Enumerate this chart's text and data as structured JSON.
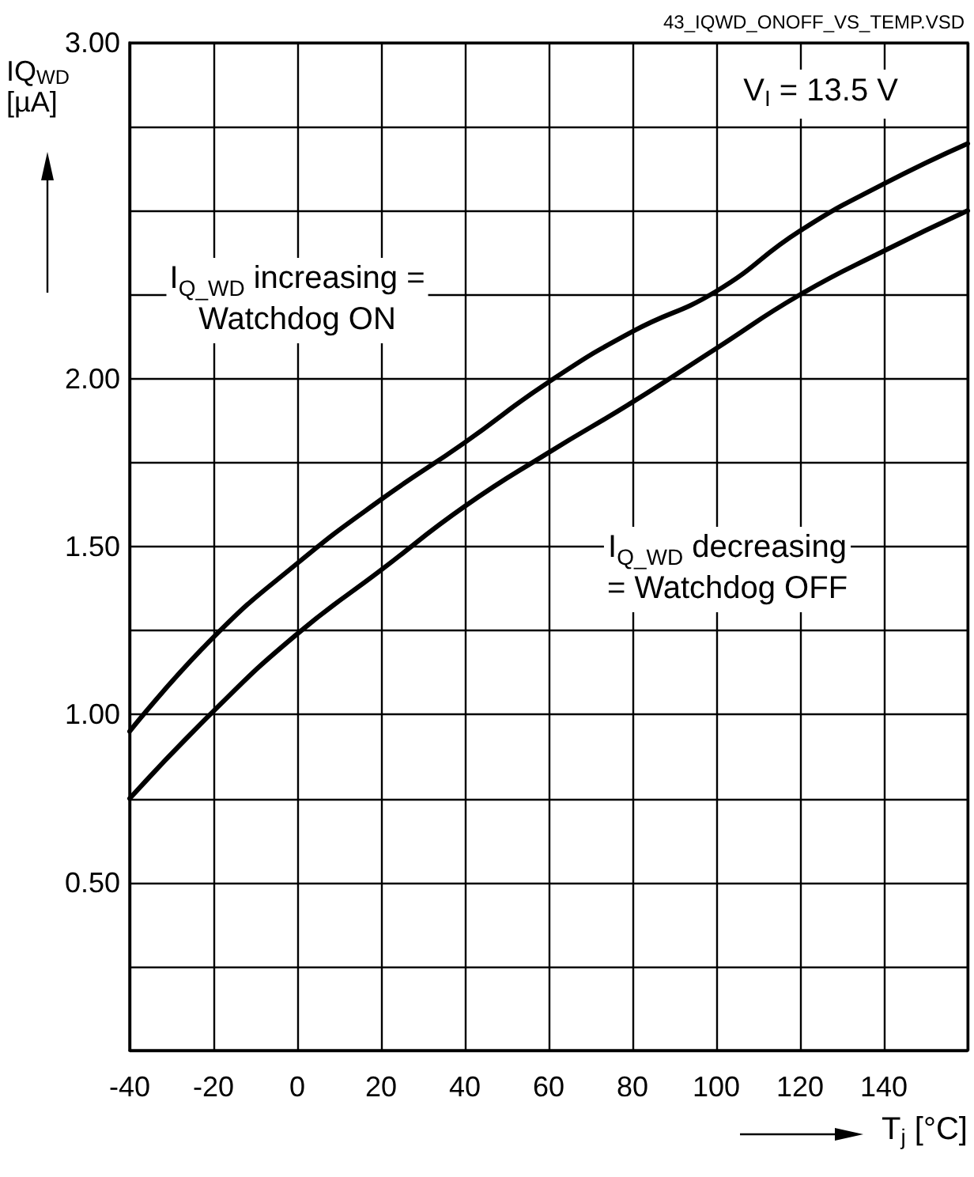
{
  "chart_data": {
    "type": "line",
    "xlabel": "T$_{j}$ [°C]",
    "ylabel": "IQ$_{WD}$ [µA]",
    "x": [
      -40,
      -20,
      0,
      20,
      40,
      60,
      80,
      100,
      120,
      140,
      160
    ],
    "series": [
      {
        "color": "#000000",
        "values": [
          0.95,
          1.23,
          1.45,
          1.64,
          1.81,
          1.99,
          2.14,
          2.26,
          2.44,
          2.58,
          2.7
        ]
      },
      {
        "color": "#000000",
        "values": [
          0.75,
          1.01,
          1.24,
          1.43,
          1.62,
          1.78,
          1.93,
          2.09,
          2.25,
          2.38,
          2.5
        ]
      }
    ],
    "xlim": [
      -40,
      160
    ],
    "xticks": [
      -40,
      -20,
      0,
      20,
      40,
      60,
      80,
      100,
      120,
      140,
      {
        "value": 160,
        "label": null
      }
    ],
    "ylim": [
      0,
      3
    ],
    "yticks": [
      {
        "value": 0,
        "label": null
      },
      {
        "value": 0.25,
        "label": null
      },
      {
        "value": 0.5,
        "label": "0.50"
      },
      {
        "value": 0.75,
        "label": null
      },
      {
        "value": 1,
        "label": "1.00"
      },
      {
        "value": 1.25,
        "label": null
      },
      {
        "value": 1.5,
        "label": "1.50"
      },
      {
        "value": 1.75,
        "label": null
      },
      {
        "value": 2,
        "label": "2.00"
      },
      {
        "value": 2.25,
        "label": null
      },
      {
        "value": 2.5,
        "label": null
      },
      {
        "value": 2.75,
        "label": null
      },
      {
        "value": 3,
        "label": "3.00"
      }
    ],
    "grid": true,
    "marker": "none",
    "line_style": "solid",
    "annotations": [
      "43_IQWD_ONOFF_VS_TEMP.VSD",
      "V$_{I}$ = 13.5 V",
      "I$_{Q_WD}$ increasing =\nWatchdog ON",
      "I$_{Q_WD}$ decreasing\n= Watchdog OFF"
    ]
  }
}
